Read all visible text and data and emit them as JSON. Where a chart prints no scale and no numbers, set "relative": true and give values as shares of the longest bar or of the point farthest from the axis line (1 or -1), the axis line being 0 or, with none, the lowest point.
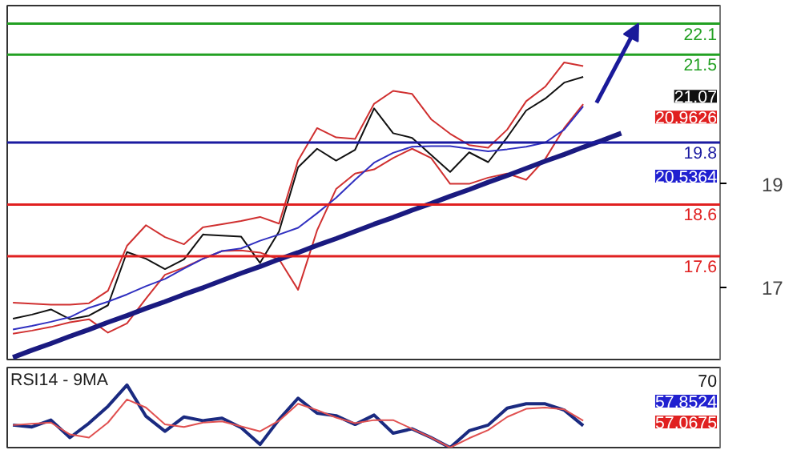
{
  "chart_data": [
    {
      "type": "line",
      "categories": [
        null,
        null,
        null,
        null,
        null,
        null,
        null,
        null,
        null,
        null,
        null,
        null,
        null,
        null,
        null,
        null,
        null,
        null,
        null,
        null,
        null,
        null,
        null,
        null,
        null,
        null,
        null,
        null,
        null,
        null,
        null,
        null,
        null
      ],
      "ylim": [
        15.6,
        22.45
      ],
      "yticks": [
        17,
        19
      ],
      "grid": false,
      "series": [
        {
          "color": "#111111",
          "values": [
            16.39,
            16.47,
            16.57,
            16.38,
            16.45,
            16.65,
            17.68,
            17.55,
            17.35,
            17.54,
            18.02,
            18.0,
            17.98,
            17.47,
            18.08,
            19.32,
            19.68,
            19.45,
            19.66,
            20.46,
            19.98,
            19.89,
            19.56,
            19.23,
            19.61,
            19.42,
            19.9,
            20.42,
            20.65,
            20.96,
            21.07,
            null,
            null
          ]
        },
        {
          "color": "#d03030",
          "values": [
            16.7,
            16.68,
            16.66,
            16.66,
            16.69,
            16.93,
            17.8,
            18.2,
            17.97,
            17.83,
            18.16,
            18.22,
            18.28,
            18.36,
            18.23,
            19.45,
            20.08,
            19.9,
            19.87,
            20.55,
            20.8,
            20.74,
            20.25,
            19.97,
            19.75,
            19.7,
            20.05,
            20.6,
            20.88,
            21.35,
            21.28,
            null,
            null
          ]
        },
        {
          "color": "#d03030",
          "values": [
            16.1,
            16.16,
            16.23,
            16.32,
            16.38,
            16.12,
            16.3,
            16.78,
            17.24,
            17.38,
            17.55,
            17.7,
            17.71,
            17.67,
            17.54,
            16.95,
            18.1,
            18.9,
            19.2,
            19.28,
            19.5,
            19.68,
            19.5,
            19.0,
            19.0,
            19.12,
            19.2,
            19.08,
            19.48,
            20.08,
            20.54,
            null,
            null
          ]
        },
        {
          "color": "#3030c0",
          "values": [
            16.18,
            16.25,
            16.33,
            16.42,
            16.6,
            16.72,
            16.86,
            17.02,
            17.16,
            17.36,
            17.55,
            17.7,
            17.75,
            17.9,
            18.02,
            18.15,
            18.43,
            18.73,
            19.08,
            19.41,
            19.6,
            19.72,
            19.73,
            19.73,
            19.68,
            19.63,
            19.67,
            19.72,
            19.8,
            20.05,
            20.5,
            null,
            null
          ]
        },
        {
          "color": "#1a1a80",
          "values": [
            15.64,
            15.78,
            15.91,
            16.05,
            16.18,
            16.32,
            16.45,
            16.59,
            16.72,
            16.86,
            16.99,
            17.13,
            17.27,
            17.4,
            17.54,
            17.67,
            17.81,
            17.94,
            18.08,
            18.22,
            18.35,
            18.49,
            18.62,
            18.76,
            18.89,
            19.03,
            19.16,
            19.3,
            19.44,
            19.57,
            19.71,
            19.84,
            19.98
          ]
        }
      ],
      "ref_lines": [
        {
          "axis": "y",
          "value": 22.1,
          "label": "22.1",
          "color": "#22a022"
        },
        {
          "axis": "y",
          "value": 21.5,
          "label": "21.5",
          "color": "#22a022"
        },
        {
          "axis": "y",
          "value": 19.8,
          "label": "19.8",
          "color": "#1a1aa0"
        },
        {
          "axis": "y",
          "value": 18.6,
          "label": "18.6",
          "color": "#e02020"
        },
        {
          "axis": "y",
          "value": 17.6,
          "label": "17.6",
          "color": "#e02020"
        }
      ],
      "annotations": [
        "21.07",
        "20.9626",
        "20.5364"
      ]
    },
    {
      "type": "line",
      "title": "RSI14 - 9MA",
      "relative": true,
      "grid": false,
      "categories": [
        null,
        null,
        null,
        null,
        null,
        null,
        null,
        null,
        null,
        null,
        null,
        null,
        null,
        null,
        null,
        null,
        null,
        null,
        null,
        null,
        null,
        null,
        null,
        null,
        null,
        null,
        null,
        null,
        null,
        null,
        null
      ],
      "series": [
        {
          "color": "#1a2a80",
          "values": [
            0.36,
            0.33,
            0.44,
            0.16,
            0.39,
            0.66,
            1,
            0.5,
            0.26,
            0.49,
            0.43,
            0.47,
            0.32,
            0.05,
            0.45,
            0.79,
            0.55,
            0.51,
            0.37,
            0.52,
            0.23,
            0.3,
            0.16,
            0,
            0.27,
            0.36,
            0.63,
            0.7,
            0.7,
            0.6,
            0.35
          ]
        },
        {
          "color": "#e05050",
          "values": [
            0.36,
            0.38,
            0.4,
            0.21,
            0.16,
            0.4,
            0.77,
            0.64,
            0.37,
            0.33,
            0.4,
            0.42,
            0.34,
            0.26,
            0.43,
            0.7,
            0.6,
            0.48,
            0.39,
            0.44,
            0.44,
            0.3,
            0.16,
            0,
            0.15,
            0.28,
            0.49,
            0.62,
            0.64,
            0.61,
            0.43
          ]
        }
      ],
      "annotations": [
        "70",
        "57.8524",
        "57.0675"
      ]
    }
  ]
}
